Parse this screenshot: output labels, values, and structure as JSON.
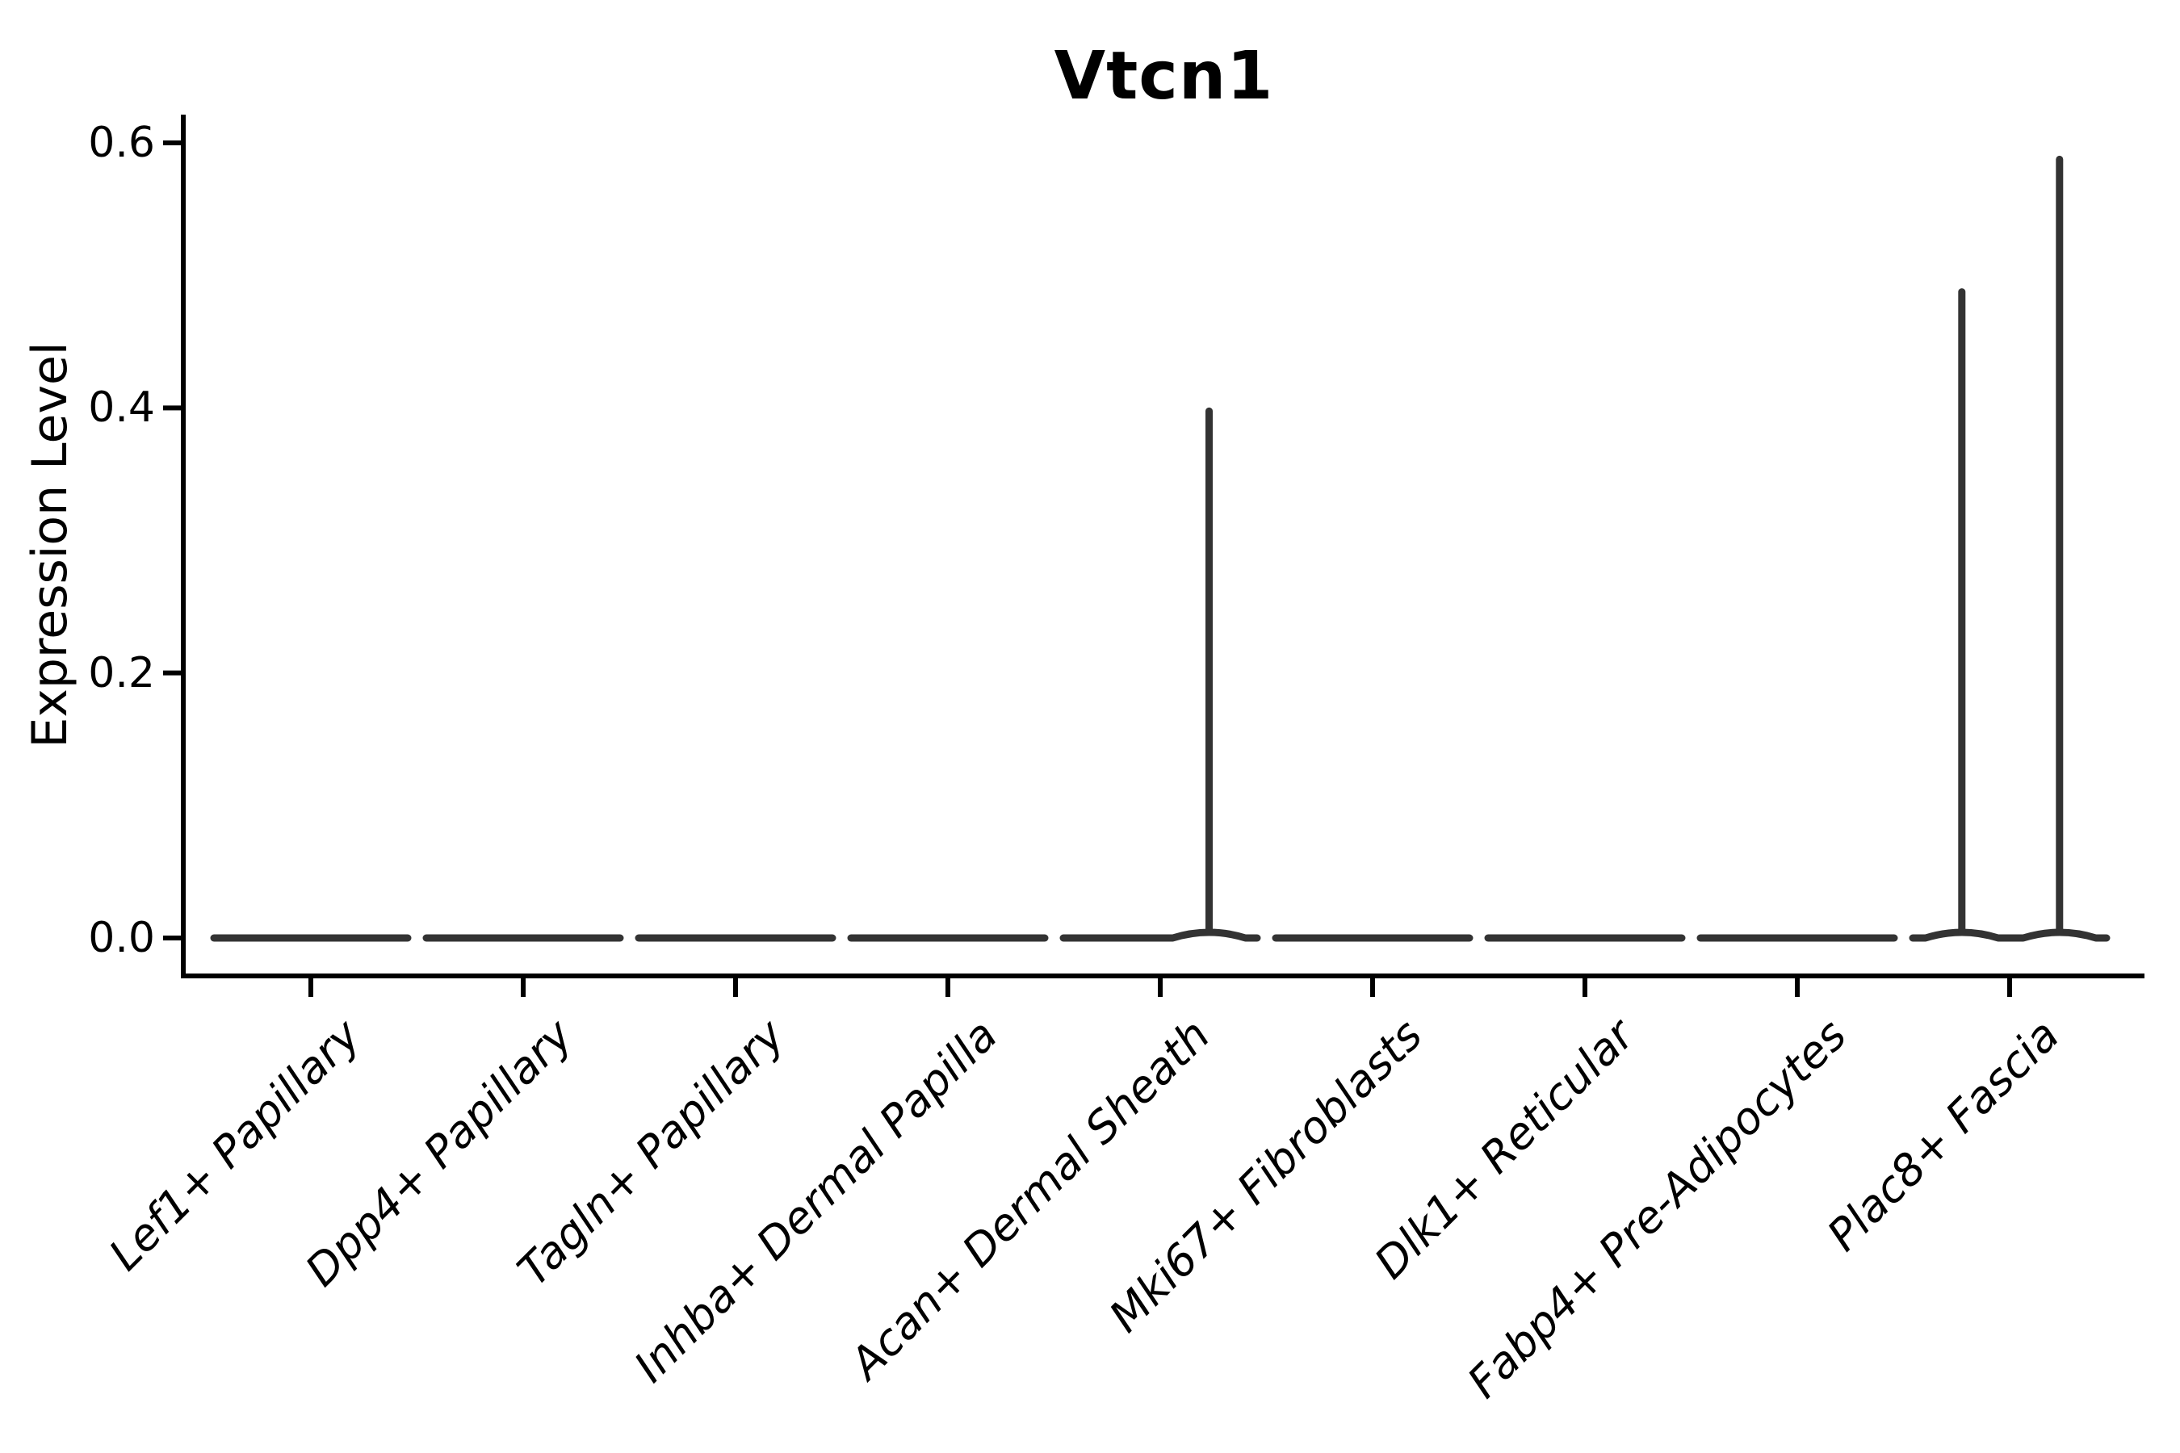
{
  "figure": {
    "background": "#ffffff"
  },
  "chart_data": {
    "type": "violin",
    "title": "Vtcn1",
    "ylabel": "Expression Level",
    "xlabel": "",
    "yticks": [
      0.0,
      0.2,
      0.4,
      0.6
    ],
    "ylim": [
      -0.028,
      0.62
    ],
    "grid": false,
    "legend": "none",
    "line_color": "#333333",
    "axis_color": "#000000",
    "categories": [
      "Lef1+ Papillary",
      "Dpp4+ Papillary",
      "Tagln+ Papillary",
      "Inhba+ Dermal Papilla",
      "Acan+ Dermal Sheath",
      "Mki67+ Fibroblasts",
      "Dlk1+ Reticular",
      "Fabp4+ Pre-Adipocytes",
      "Plac8+ Fascia"
    ],
    "violins": [
      {
        "category": "Lef1+ Papillary",
        "body_value": 0.0,
        "spikes": []
      },
      {
        "category": "Dpp4+ Papillary",
        "body_value": 0.0,
        "spikes": []
      },
      {
        "category": "Tagln+ Papillary",
        "body_value": 0.0,
        "spikes": []
      },
      {
        "category": "Inhba+ Dermal Papilla",
        "body_value": 0.0,
        "spikes": []
      },
      {
        "category": "Acan+ Dermal Sheath",
        "body_value": 0.0,
        "spikes": [
          {
            "value": 0.4,
            "offset_frac": 0.23
          }
        ]
      },
      {
        "category": "Mki67+ Fibroblasts",
        "body_value": 0.0,
        "spikes": []
      },
      {
        "category": "Dlk1+ Reticular",
        "body_value": 0.0,
        "spikes": []
      },
      {
        "category": "Fabp4+ Pre-Adipocytes",
        "body_value": 0.0,
        "spikes": []
      },
      {
        "category": "Plac8+ Fascia",
        "body_value": 0.0,
        "spikes": [
          {
            "value": 0.49,
            "offset_frac": -0.225
          },
          {
            "value": 0.59,
            "offset_frac": 0.235
          }
        ]
      }
    ]
  }
}
